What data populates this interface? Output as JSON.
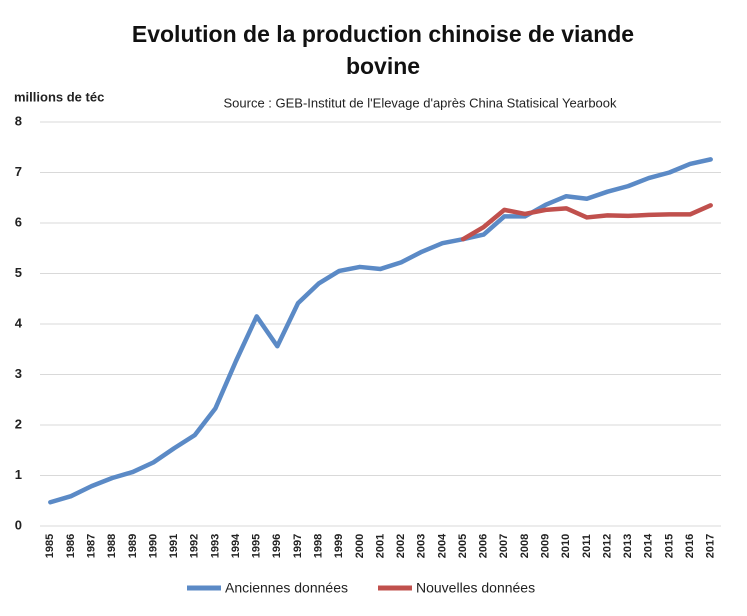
{
  "chart_data": {
    "type": "line",
    "title": "Evolution de la production chinoise de viande bovine",
    "subtitle": "Source : GEB-Institut de l'Elevage d'après China Statisical Yearbook",
    "y_label": "millions de téc",
    "categories": [
      "1985",
      "1986",
      "1987",
      "1988",
      "1989",
      "1990",
      "1991",
      "1992",
      "1993",
      "1994",
      "1995",
      "1996",
      "1997",
      "1998",
      "1999",
      "2000",
      "2001",
      "2002",
      "2003",
      "2004",
      "2005",
      "2006",
      "2007",
      "2008",
      "2009",
      "2010",
      "2011",
      "2012",
      "2013",
      "2014",
      "2015",
      "2016",
      "2017"
    ],
    "series": [
      {
        "name": "Anciennes données",
        "color": "#5b8ac6",
        "values": [
          0.47,
          0.59,
          0.79,
          0.95,
          1.07,
          1.26,
          1.54,
          1.8,
          2.33,
          3.27,
          4.15,
          3.56,
          4.41,
          4.8,
          5.05,
          5.13,
          5.09,
          5.22,
          5.43,
          5.6,
          5.68,
          5.77,
          6.13,
          6.13,
          6.36,
          6.53,
          6.48,
          6.62,
          6.73,
          6.89,
          7.0,
          7.17,
          7.26
        ]
      },
      {
        "name": "Nouvelles données",
        "color": "#c0504d",
        "values": [
          null,
          null,
          null,
          null,
          null,
          null,
          null,
          null,
          null,
          null,
          null,
          null,
          null,
          null,
          null,
          null,
          null,
          null,
          null,
          null,
          5.68,
          5.92,
          6.26,
          6.18,
          6.26,
          6.29,
          6.11,
          6.15,
          6.14,
          6.16,
          6.17,
          6.17,
          6.35
        ]
      }
    ],
    "ylim": [
      0,
      8
    ],
    "yticks": [
      0,
      1,
      2,
      3,
      4,
      5,
      6,
      7,
      8
    ],
    "grid": true
  }
}
